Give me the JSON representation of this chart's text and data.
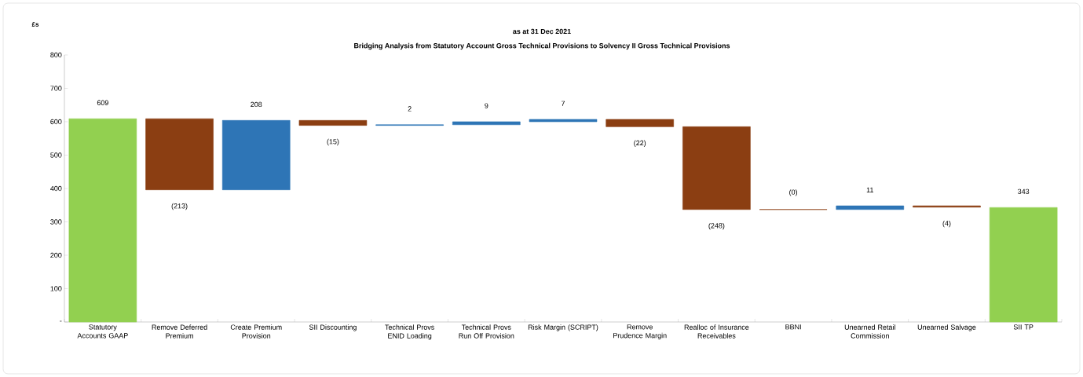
{
  "chart_data": {
    "type": "bar",
    "title": "as at 31 Dec 2021",
    "subtitle": "Bridging Analysis from Statutory Account Gross Technical Provisions to Solvency II Gross Technical Provisions",
    "ylabel": "£s",
    "categories": [
      "Statutory Accounts GAAP",
      "Remove Deferred Premium",
      "Create Premium Provision",
      "SII Discounting",
      "Technical Provs ENID Loading",
      "Technical Provs Run Off Provision",
      "Risk Margin (SCRIPT)",
      "Remove Prudence Margin",
      "Realloc of Insurance Receivables",
      "BBNI",
      "Unearned Retail Commission",
      "Unearned Salvage",
      "SII TP"
    ],
    "values": [
      609,
      -213,
      208,
      -15,
      2,
      9,
      7,
      -22,
      -248,
      0,
      11,
      -4,
      343
    ],
    "base": [
      0,
      609,
      396,
      604,
      589,
      591,
      600,
      607,
      585,
      337,
      337,
      348,
      0
    ],
    "colors": [
      "#92d050",
      "#8b3e12",
      "#2e75b6",
      "#8b3e12",
      "#2e75b6",
      "#2e75b6",
      "#2e75b6",
      "#8b3e12",
      "#8b3e12",
      "#8b3e12",
      "#2e75b6",
      "#8b3e12",
      "#92d050"
    ],
    "value_labels": [
      "609",
      "(213)",
      "208",
      "(15)",
      "2",
      "9",
      "7",
      "(22)",
      "(248)",
      "(0)",
      "11",
      "(4)",
      "343"
    ],
    "ylim": [
      0,
      800
    ],
    "yticks": [
      {
        "value": 0,
        "label": "-"
      },
      100,
      200,
      300,
      400,
      500,
      600,
      700,
      800
    ]
  }
}
